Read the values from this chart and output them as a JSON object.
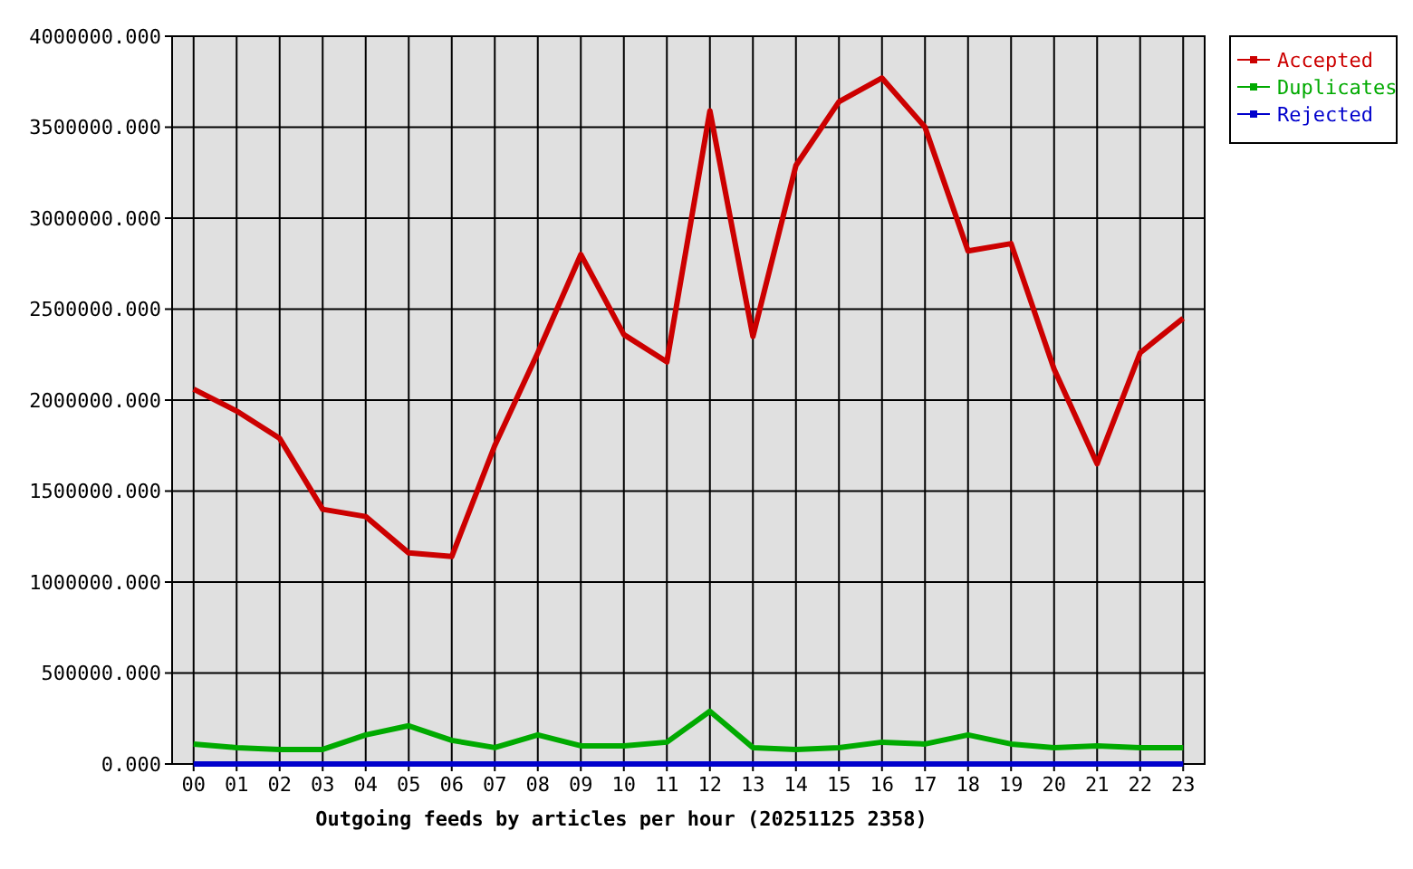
{
  "chart_data": {
    "type": "line",
    "xlabel": "Outgoing feeds by articles per hour (20251125 2358)",
    "categories": [
      "00",
      "01",
      "02",
      "03",
      "04",
      "05",
      "06",
      "07",
      "08",
      "09",
      "10",
      "11",
      "12",
      "13",
      "14",
      "15",
      "16",
      "17",
      "18",
      "19",
      "20",
      "21",
      "22",
      "23"
    ],
    "series": [
      {
        "name": "Accepted",
        "color": "#cc0000",
        "values": [
          2060000,
          1940000,
          1790000,
          1400000,
          1360000,
          1160000,
          1140000,
          1750000,
          2260000,
          2800000,
          2360000,
          2210000,
          3590000,
          2350000,
          3290000,
          3640000,
          3770000,
          3500000,
          2820000,
          2860000,
          2170000,
          1650000,
          2260000,
          2450000
        ]
      },
      {
        "name": "Duplicates",
        "color": "#00aa00",
        "values": [
          110000,
          90000,
          80000,
          80000,
          160000,
          210000,
          130000,
          90000,
          160000,
          100000,
          100000,
          120000,
          290000,
          90000,
          80000,
          90000,
          120000,
          110000,
          160000,
          110000,
          90000,
          100000,
          90000,
          90000
        ]
      },
      {
        "name": "Rejected",
        "color": "#0000cc",
        "values": [
          0,
          0,
          0,
          0,
          0,
          0,
          0,
          0,
          0,
          0,
          0,
          0,
          0,
          0,
          0,
          0,
          0,
          0,
          0,
          0,
          0,
          0,
          0,
          0
        ]
      }
    ],
    "ylim": [
      0,
      4000000
    ],
    "yticks": [
      {
        "value": 0,
        "label": "0.000"
      },
      {
        "value": 500000,
        "label": "500000.000"
      },
      {
        "value": 1000000,
        "label": "1000000.000"
      },
      {
        "value": 1500000,
        "label": "1500000.000"
      },
      {
        "value": 2000000,
        "label": "2000000.000"
      },
      {
        "value": 2500000,
        "label": "2500000.000"
      },
      {
        "value": 3000000,
        "label": "3000000.000"
      },
      {
        "value": 3500000,
        "label": "3500000.000"
      },
      {
        "value": 4000000,
        "label": "4000000.000"
      }
    ],
    "grid": true,
    "legend": "top right",
    "line_style": "solid"
  }
}
